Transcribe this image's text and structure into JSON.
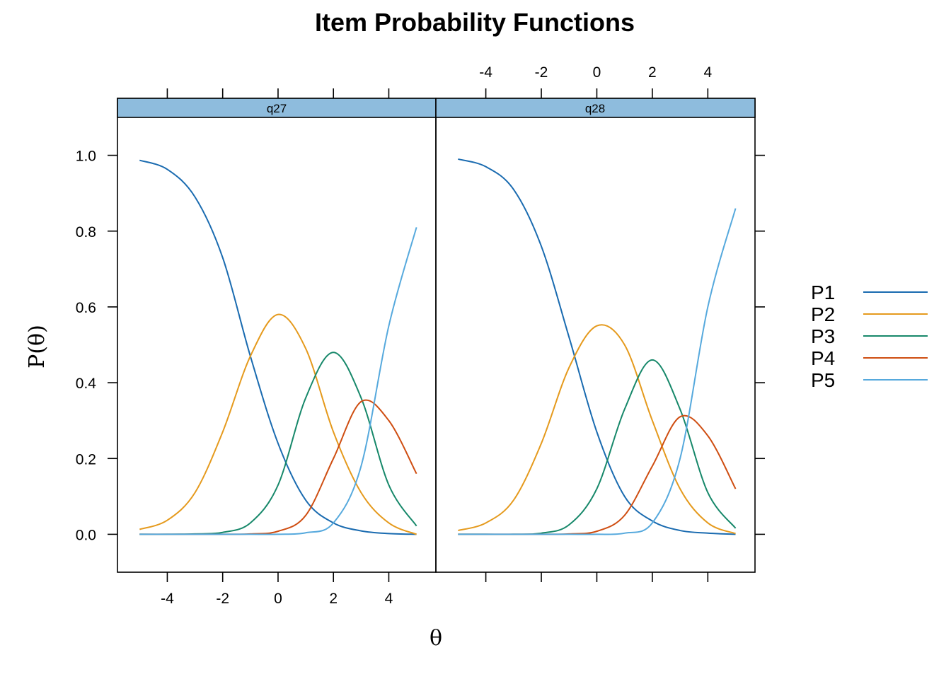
{
  "chart_data": {
    "type": "line",
    "title": "Item Probability Functions",
    "xlabel": "θ",
    "ylabel": "P(θ)",
    "xlim": [
      -5.8,
      5.7
    ],
    "ylim": [
      -0.1,
      1.1
    ],
    "x_ticks": [
      -4,
      -2,
      0,
      2,
      4
    ],
    "x_tick_labels": [
      "-4",
      "-2",
      "0",
      "2",
      "4"
    ],
    "y_ticks": [
      0.0,
      0.2,
      0.4,
      0.6,
      0.8,
      1.0
    ],
    "y_tick_labels": [
      "0.0",
      "0.2",
      "0.4",
      "0.6",
      "0.8",
      "1.0"
    ],
    "legend": {
      "position": "right",
      "entries": [
        {
          "label": "P1",
          "color": "#1a6bb0"
        },
        {
          "label": "P2",
          "color": "#e59a1d"
        },
        {
          "label": "P3",
          "color": "#17886a"
        },
        {
          "label": "P4",
          "color": "#cf4e12"
        },
        {
          "label": "P5",
          "color": "#56a9dd"
        }
      ]
    },
    "panels": [
      {
        "name": "q27",
        "x": [
          -5,
          -4,
          -3,
          -2,
          -1,
          0,
          1,
          2,
          3,
          4,
          5
        ],
        "series": [
          {
            "name": "P1",
            "values": [
              0.987,
              0.963,
              0.89,
              0.73,
              0.47,
              0.24,
              0.09,
              0.03,
              0.009,
              0.002,
              0.0
            ]
          },
          {
            "name": "P2",
            "values": [
              0.013,
              0.037,
              0.11,
              0.27,
              0.47,
              0.58,
              0.49,
              0.27,
              0.11,
              0.03,
              0.0
            ]
          },
          {
            "name": "P3",
            "values": [
              0.0,
              0.0,
              0.001,
              0.005,
              0.03,
              0.13,
              0.36,
              0.48,
              0.36,
              0.13,
              0.022
            ]
          },
          {
            "name": "P4",
            "values": [
              0.0,
              0.0,
              0.0,
              0.0,
              0.001,
              0.008,
              0.05,
              0.2,
              0.35,
              0.3,
              0.16
            ]
          },
          {
            "name": "P5",
            "values": [
              0.0,
              0.0,
              0.0,
              0.0,
              0.0,
              0.0,
              0.004,
              0.03,
              0.18,
              0.55,
              0.81
            ]
          }
        ]
      },
      {
        "name": "q28",
        "x": [
          -5,
          -4,
          -3,
          -2,
          -1,
          0,
          1,
          2,
          3,
          4,
          5
        ],
        "series": [
          {
            "name": "P1",
            "values": [
              0.99,
              0.97,
              0.91,
              0.76,
              0.52,
              0.27,
              0.1,
              0.035,
              0.01,
              0.003,
              0.0
            ]
          },
          {
            "name": "P2",
            "values": [
              0.01,
              0.03,
              0.09,
              0.24,
              0.44,
              0.55,
              0.5,
              0.3,
              0.12,
              0.03,
              0.002
            ]
          },
          {
            "name": "P3",
            "values": [
              0.0,
              0.0,
              0.0,
              0.003,
              0.025,
              0.12,
              0.33,
              0.46,
              0.33,
              0.11,
              0.016
            ]
          },
          {
            "name": "P4",
            "values": [
              0.0,
              0.0,
              0.0,
              0.0,
              0.001,
              0.008,
              0.05,
              0.18,
              0.31,
              0.26,
              0.12
            ]
          },
          {
            "name": "P5",
            "values": [
              0.0,
              0.0,
              0.0,
              0.0,
              0.0,
              0.0,
              0.003,
              0.03,
              0.2,
              0.6,
              0.86
            ]
          }
        ]
      }
    ]
  }
}
